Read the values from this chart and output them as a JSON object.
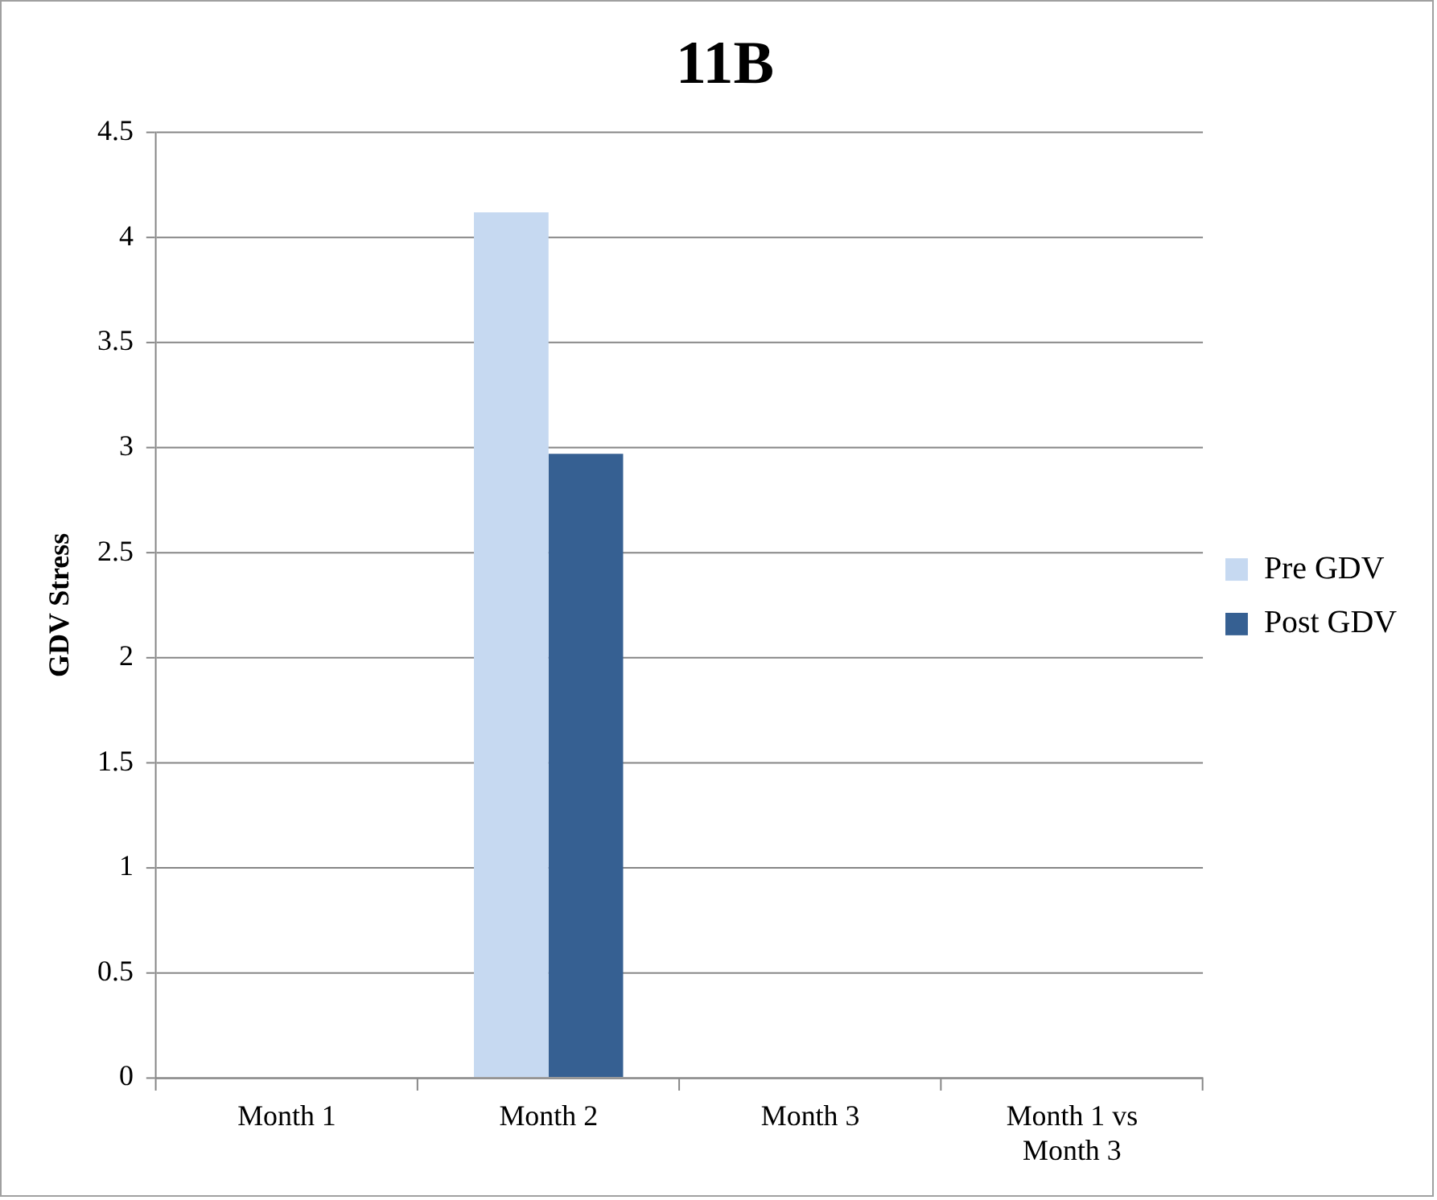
{
  "chart_data": {
    "type": "bar",
    "title": "11B",
    "ylabel": "GDV Stress",
    "categories": [
      "Month 1",
      "Month 2",
      "Month 3",
      "Month 1 vs Month 3"
    ],
    "series": [
      {
        "name": "Pre GDV",
        "color": "#c6d9f1",
        "values": [
          null,
          4.12,
          null,
          null
        ]
      },
      {
        "name": "Post GDV",
        "color": "#366092",
        "values": [
          null,
          2.97,
          null,
          null
        ]
      }
    ],
    "ylim": [
      0,
      4.5
    ],
    "yticks": [
      0,
      0.5,
      1,
      1.5,
      2,
      2.5,
      3,
      3.5,
      4,
      4.5
    ],
    "grid": "y",
    "legend": "right"
  }
}
